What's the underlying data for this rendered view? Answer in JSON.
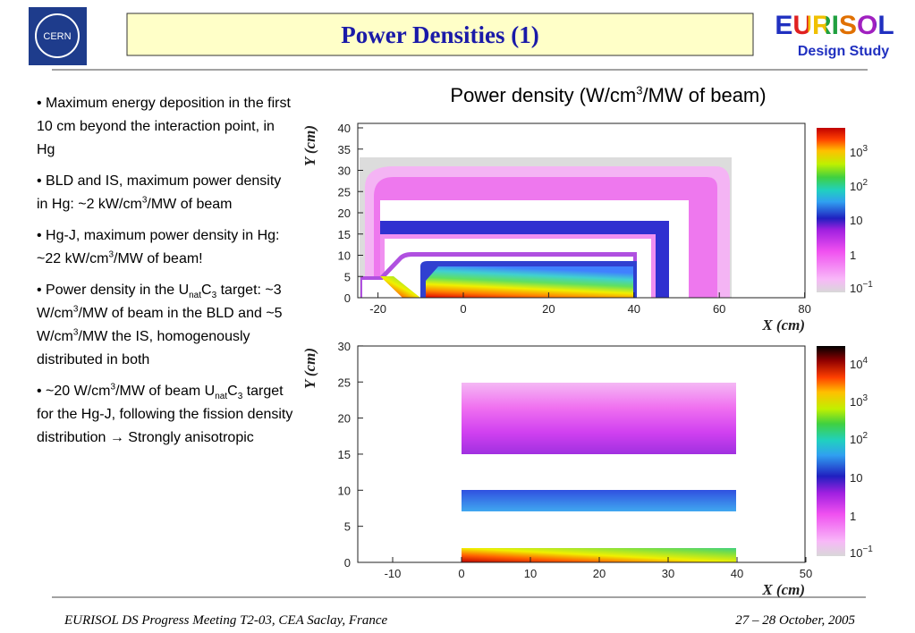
{
  "header": {
    "title": "Power Densities (1)",
    "logo_left": "CERN",
    "logo_right": "EURISOL",
    "logo_right_sub": "Design Study"
  },
  "bullets": [
    [
      "• Maximum energy deposition in the first 10 cm beyond the interaction point, in Hg"
    ],
    [
      "• BLD and IS, maximum power density in Hg: ~2 kW/cm",
      {
        "sup": "3"
      },
      "/MW of beam"
    ],
    [
      "• Hg-J, maximum power density in Hg: ~22 kW/cm",
      {
        "sup": "3"
      },
      "/MW of beam!"
    ],
    [
      "• Power density in the U",
      {
        "sub": "nat"
      },
      "C",
      {
        "sub": "3"
      },
      " target: ~3 W/cm",
      {
        "sup": "3"
      },
      "/MW of beam in the BLD and ~5 W/cm",
      {
        "sup": "3"
      },
      "/MW the IS, homogenously distributed in both"
    ],
    [
      "• ~20 W/cm",
      {
        "sup": "3"
      },
      "/MW of beam U",
      {
        "sub": "nat"
      },
      "C",
      {
        "sub": "3"
      },
      " target for the Hg-J, following the fission density distribution → Strongly anisotropic"
    ]
  ],
  "figure_title": [
    "Power density (W/cm",
    {
      "sup": "3"
    },
    "/MW of beam)"
  ],
  "plots": [
    {
      "xlabel": "X (cm)",
      "ylabel": "Y (cm)",
      "xticks": [
        -20,
        0,
        20,
        40,
        60,
        80
      ],
      "yticks": [
        0,
        5,
        10,
        15,
        20,
        25,
        30,
        35,
        40
      ],
      "colorbar": [
        [
          "10",
          {
            "sup": "3"
          }
        ],
        [
          "10",
          {
            "sup": "2"
          }
        ],
        [
          "10"
        ],
        [
          "1"
        ],
        [
          "10",
          {
            "sup": "−1"
          }
        ]
      ]
    },
    {
      "xlabel": "X (cm)",
      "ylabel": "Y (cm)",
      "xticks": [
        -10,
        0,
        10,
        20,
        30,
        40,
        50
      ],
      "yticks": [
        0,
        5,
        10,
        15,
        20,
        25,
        30
      ],
      "colorbar": [
        [
          "10",
          {
            "sup": "4"
          }
        ],
        [
          "10",
          {
            "sup": "3"
          }
        ],
        [
          "10",
          {
            "sup": "2"
          }
        ],
        [
          "10"
        ],
        [
          "1"
        ],
        [
          "10",
          {
            "sup": "−1"
          }
        ]
      ]
    }
  ],
  "footer": {
    "left": "EURISOL DS Progress Meeting T2-03, CEA Saclay, France",
    "right": "27 – 28 October, 2005"
  }
}
